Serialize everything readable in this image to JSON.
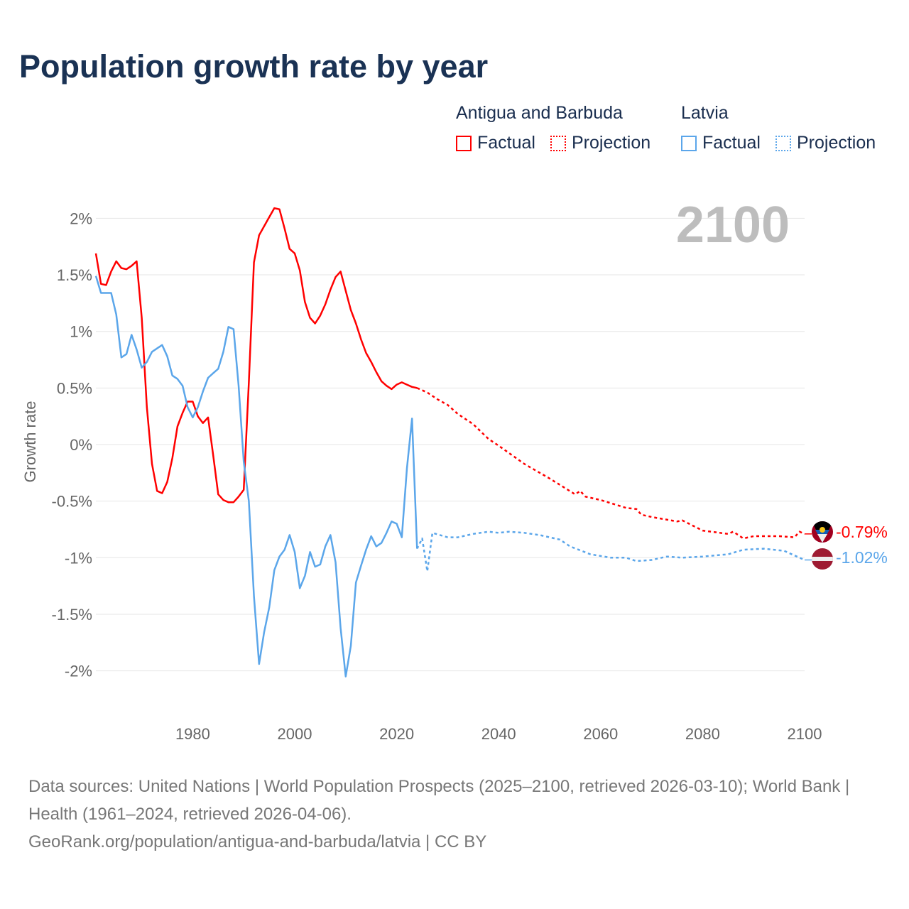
{
  "title": "Population growth rate by year",
  "legend": {
    "groups": [
      {
        "name": "Antigua and Barbuda",
        "factual": "Factual",
        "projection": "Projection",
        "color": "#ff0000"
      },
      {
        "name": "Latvia",
        "factual": "Factual",
        "projection": "Projection",
        "color": "#5ba6ea"
      }
    ]
  },
  "year_display": "2100",
  "end_labels": {
    "antigua": "-0.79%",
    "latvia": "-1.02%"
  },
  "footer": {
    "sources": "Data sources: United Nations | World Population Prospects (2025–2100, retrieved 2026-03-10); World Bank | Health (1961–2024, retrieved 2026-04-06).",
    "attribution": "GeoRank.org/population/antigua-and-barbuda/latvia | CC BY"
  },
  "chart_data": {
    "type": "line",
    "title": "Population growth rate by year",
    "xlabel": "",
    "ylabel": "Growth rate",
    "xlim": [
      1961,
      2100
    ],
    "ylim": [
      -2.4,
      2.2
    ],
    "grid": true,
    "x_ticks": [
      "1980",
      "2000",
      "2020",
      "2040",
      "2060",
      "2080",
      "2100"
    ],
    "x_tick_values": [
      1980,
      2000,
      2020,
      2040,
      2060,
      2080,
      2100
    ],
    "y_ticks": [
      "2%",
      "1.5%",
      "1%",
      "0.5%",
      "0%",
      "-0.5%",
      "-1%",
      "-1.5%",
      "-2%"
    ],
    "y_tick_values": [
      2,
      1.5,
      1,
      0.5,
      0,
      -0.5,
      -1,
      -1.5,
      -2
    ],
    "legend_position": "top-right",
    "series": [
      {
        "name": "Antigua and Barbuda",
        "kind": "factual",
        "x": [
          1961,
          1962,
          1963,
          1964,
          1965,
          1966,
          1967,
          1968,
          1969,
          1970,
          1971,
          1972,
          1973,
          1974,
          1975,
          1976,
          1977,
          1978,
          1979,
          1980,
          1981,
          1982,
          1983,
          1984,
          1985,
          1986,
          1987,
          1988,
          1989,
          1990,
          1991,
          1992,
          1993,
          1994,
          1995,
          1996,
          1997,
          1998,
          1999,
          2000,
          2001,
          2002,
          2003,
          2004,
          2005,
          2006,
          2007,
          2008,
          2009,
          2010,
          2011,
          2012,
          2013,
          2014,
          2015,
          2016,
          2017,
          2018,
          2019,
          2020,
          2021,
          2022,
          2023,
          2024
        ],
        "y": [
          1.69,
          1.42,
          1.41,
          1.53,
          1.62,
          1.56,
          1.55,
          1.58,
          1.62,
          1.12,
          0.33,
          -0.17,
          -0.41,
          -0.43,
          -0.33,
          -0.12,
          0.16,
          0.28,
          0.38,
          0.38,
          0.25,
          0.19,
          0.24,
          -0.09,
          -0.44,
          -0.49,
          -0.51,
          -0.51,
          -0.46,
          -0.4,
          0.55,
          1.61,
          1.85,
          1.93,
          2.01,
          2.09,
          2.08,
          1.91,
          1.73,
          1.69,
          1.54,
          1.26,
          1.12,
          1.07,
          1.14,
          1.24,
          1.37,
          1.48,
          1.53,
          1.36,
          1.19,
          1.07,
          0.93,
          0.81,
          0.73,
          0.64,
          0.56,
          0.52,
          0.49,
          0.53,
          0.55,
          0.53,
          0.51,
          0.5
        ]
      },
      {
        "name": "Antigua and Barbuda",
        "kind": "projection",
        "x": [
          2024,
          2025,
          2026,
          2028,
          2030,
          2032,
          2034,
          2035,
          2038,
          2040,
          2045,
          2050,
          2055,
          2056,
          2057,
          2060,
          2065,
          2067,
          2068,
          2070,
          2075,
          2076,
          2080,
          2085,
          2086,
          2088,
          2090,
          2095,
          2098,
          2099,
          2100
        ],
        "y": [
          0.5,
          0.48,
          0.46,
          0.4,
          0.35,
          0.27,
          0.21,
          0.18,
          0.05,
          -0.01,
          -0.17,
          -0.3,
          -0.44,
          -0.41,
          -0.46,
          -0.49,
          -0.56,
          -0.57,
          -0.62,
          -0.64,
          -0.68,
          -0.67,
          -0.76,
          -0.79,
          -0.77,
          -0.83,
          -0.81,
          -0.81,
          -0.82,
          -0.77,
          -0.79
        ]
      },
      {
        "name": "Latvia",
        "kind": "factual",
        "x": [
          1961,
          1962,
          1963,
          1964,
          1965,
          1966,
          1967,
          1968,
          1969,
          1970,
          1971,
          1972,
          1973,
          1974,
          1975,
          1976,
          1977,
          1978,
          1979,
          1980,
          1981,
          1982,
          1983,
          1984,
          1985,
          1986,
          1987,
          1988,
          1989,
          1990,
          1991,
          1992,
          1993,
          1994,
          1995,
          1996,
          1997,
          1998,
          1999,
          2000,
          2001,
          2002,
          2003,
          2004,
          2005,
          2006,
          2007,
          2008,
          2009,
          2010,
          2011,
          2012,
          2013,
          2014,
          2015,
          2016,
          2017,
          2018,
          2019,
          2020,
          2021,
          2022,
          2023,
          2024
        ],
        "y": [
          1.49,
          1.34,
          1.34,
          1.34,
          1.15,
          0.77,
          0.8,
          0.97,
          0.84,
          0.68,
          0.73,
          0.82,
          0.85,
          0.88,
          0.78,
          0.61,
          0.58,
          0.52,
          0.33,
          0.24,
          0.33,
          0.47,
          0.59,
          0.63,
          0.67,
          0.82,
          1.04,
          1.02,
          0.52,
          -0.15,
          -0.5,
          -1.34,
          -1.94,
          -1.66,
          -1.44,
          -1.11,
          -0.99,
          -0.93,
          -0.8,
          -0.95,
          -1.27,
          -1.16,
          -0.95,
          -1.08,
          -1.06,
          -0.9,
          -0.8,
          -1.04,
          -1.62,
          -2.05,
          -1.78,
          -1.22,
          -1.07,
          -0.93,
          -0.81,
          -0.9,
          -0.87,
          -0.78,
          -0.68,
          -0.7,
          -0.82,
          -0.21,
          0.23,
          -0.92
        ]
      },
      {
        "name": "Latvia",
        "kind": "projection",
        "x": [
          2024,
          2025,
          2026,
          2027,
          2030,
          2032,
          2035,
          2038,
          2040,
          2042,
          2045,
          2048,
          2052,
          2054,
          2058,
          2062,
          2065,
          2067,
          2070,
          2073,
          2076,
          2080,
          2085,
          2088,
          2092,
          2096,
          2098,
          2100
        ],
        "y": [
          -0.92,
          -0.83,
          -1.12,
          -0.78,
          -0.82,
          -0.82,
          -0.79,
          -0.77,
          -0.78,
          -0.77,
          -0.78,
          -0.8,
          -0.84,
          -0.9,
          -0.97,
          -1.0,
          -1.0,
          -1.03,
          -1.02,
          -0.99,
          -1.0,
          -0.99,
          -0.97,
          -0.93,
          -0.92,
          -0.94,
          -0.98,
          -1.02
        ]
      }
    ],
    "end_values": [
      -0.79,
      -1.02
    ]
  },
  "colors": {
    "antigua": "#ff0000",
    "latvia": "#5ba6ea",
    "grid": "#e6e6e6",
    "year": "#bdbdbd"
  }
}
